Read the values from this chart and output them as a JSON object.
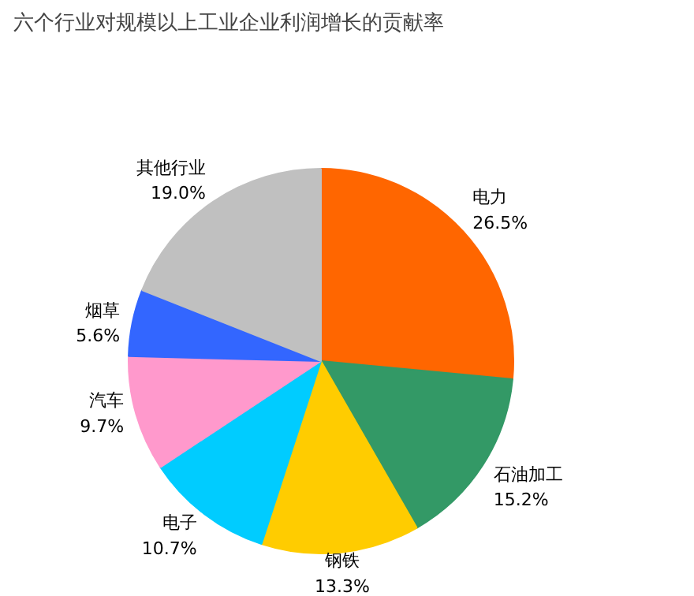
{
  "chart_data": {
    "type": "pie",
    "title": "六个行业对规模以上工业企业利润增长的贡献率",
    "categories": [
      "电力",
      "石油加工",
      "钢铁",
      "电子",
      "汽车",
      "烟草",
      "其他行业"
    ],
    "values": [
      26.5,
      15.2,
      13.3,
      10.7,
      9.7,
      5.6,
      19.0
    ],
    "value_labels": [
      "26.5%",
      "15.2%",
      "13.3%",
      "10.7%",
      "9.7%",
      "5.6%",
      "19.0%"
    ],
    "colors": [
      "#ff6600",
      "#339966",
      "#ffcc00",
      "#00ccff",
      "#ff99cc",
      "#3366ff",
      "#c0c0c0"
    ],
    "legend": false
  }
}
